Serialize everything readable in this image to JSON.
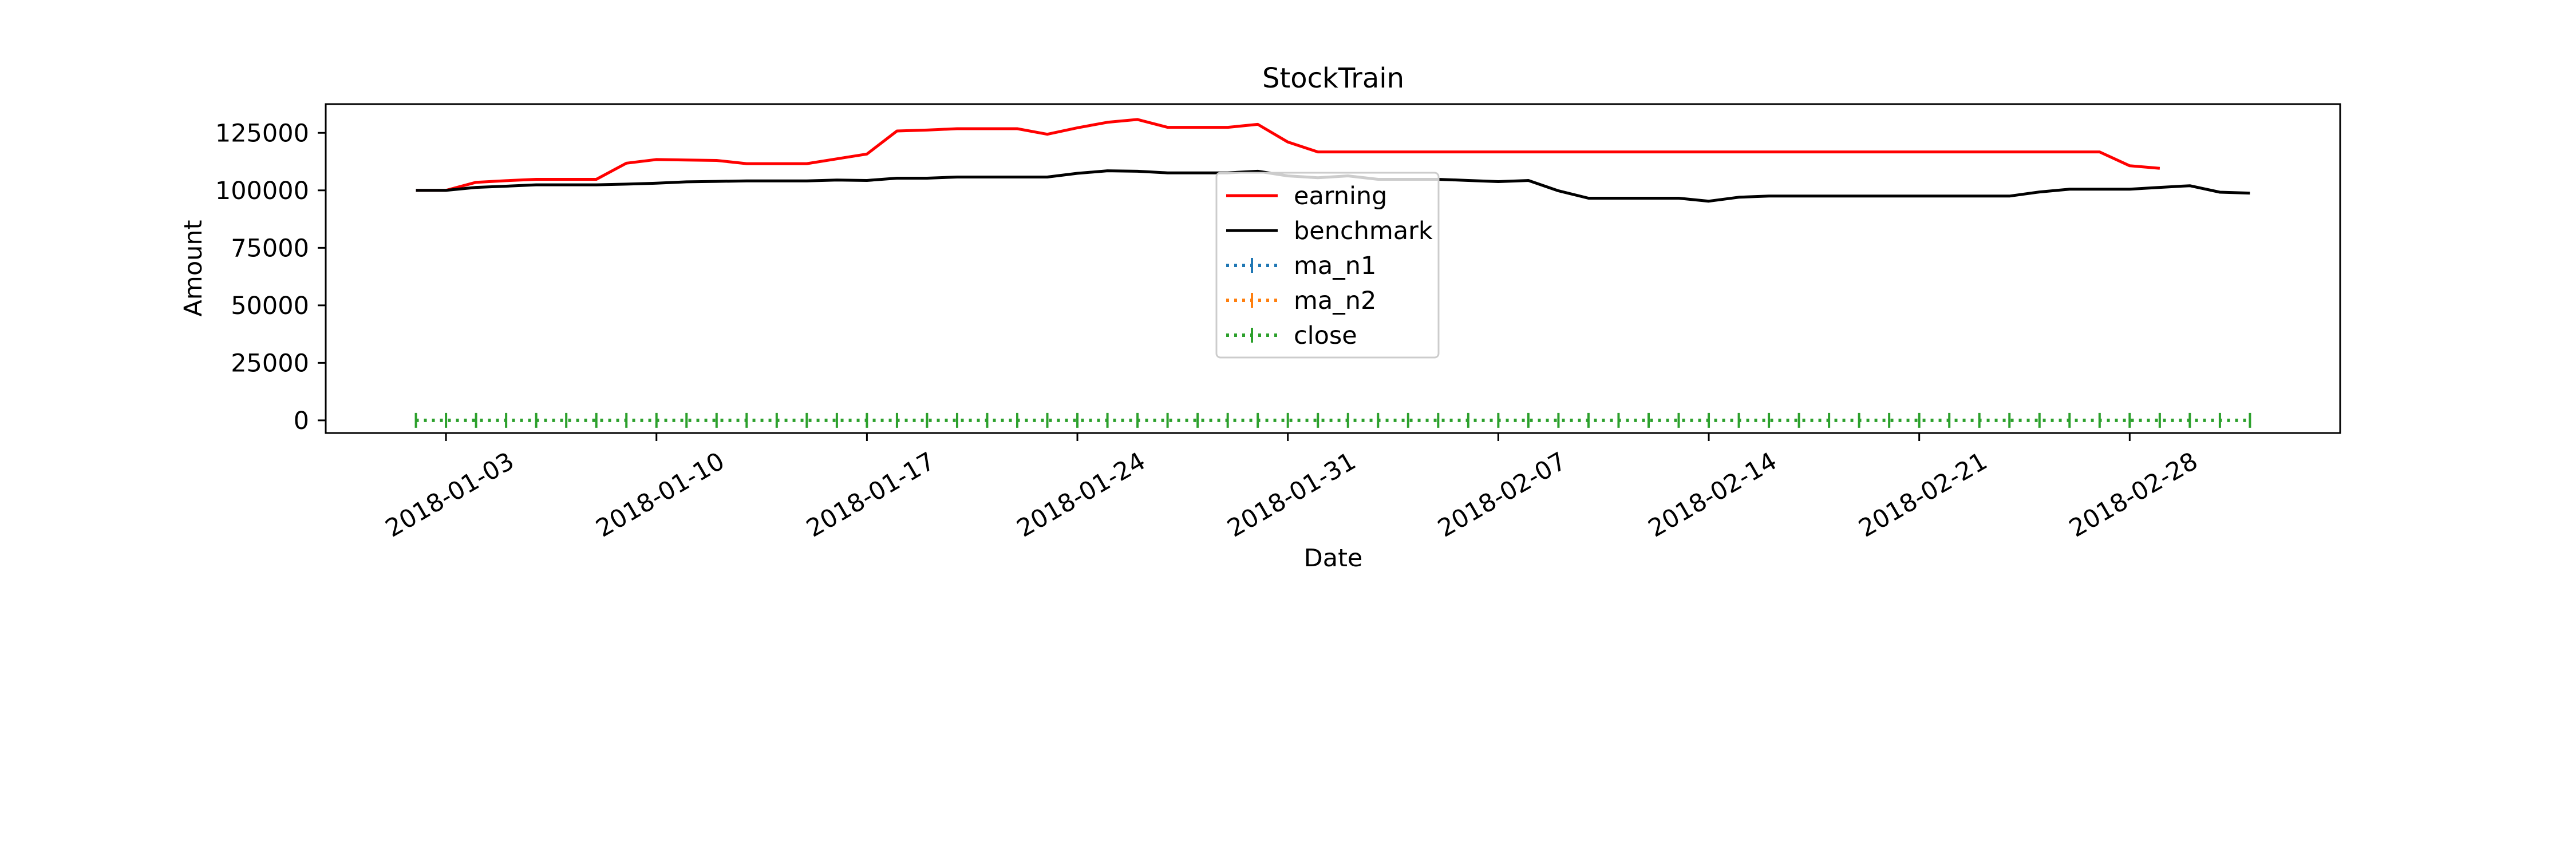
{
  "chart_data": {
    "type": "line",
    "title": "StockTrain",
    "xlabel": "Date",
    "ylabel": "Amount",
    "xlim": [
      "2017-12-30",
      "2018-03-07"
    ],
    "ylim": [
      -5500,
      137500
    ],
    "x_tick_labels": [
      "2018-01-03",
      "2018-01-10",
      "2018-01-17",
      "2018-01-24",
      "2018-01-31",
      "2018-02-07",
      "2018-02-14",
      "2018-02-21",
      "2018-02-28"
    ],
    "y_tick_labels": [
      "0",
      "25000",
      "50000",
      "75000",
      "100000",
      "125000"
    ],
    "y_tick_values": [
      0,
      25000,
      50000,
      75000,
      100000,
      125000
    ],
    "legend_position": "center",
    "grid": false,
    "series": [
      {
        "name": "earning",
        "color": "#ff0000",
        "style": "solid",
        "points": [
          [
            "2018-01-02",
            100000
          ],
          [
            "2018-01-03",
            100000
          ],
          [
            "2018-01-04",
            103500
          ],
          [
            "2018-01-05",
            104200
          ],
          [
            "2018-01-06",
            104800
          ],
          [
            "2018-01-07",
            104800
          ],
          [
            "2018-01-08",
            104800
          ],
          [
            "2018-01-09",
            111800
          ],
          [
            "2018-01-10",
            113400
          ],
          [
            "2018-01-11",
            113200
          ],
          [
            "2018-01-12",
            113000
          ],
          [
            "2018-01-13",
            111600
          ],
          [
            "2018-01-14",
            111600
          ],
          [
            "2018-01-15",
            111600
          ],
          [
            "2018-01-16",
            113700
          ],
          [
            "2018-01-17",
            115800
          ],
          [
            "2018-01-18",
            125800
          ],
          [
            "2018-01-19",
            126200
          ],
          [
            "2018-01-20",
            126800
          ],
          [
            "2018-01-21",
            126800
          ],
          [
            "2018-01-22",
            126800
          ],
          [
            "2018-01-23",
            124400
          ],
          [
            "2018-01-24",
            127200
          ],
          [
            "2018-01-25",
            129600
          ],
          [
            "2018-01-26",
            130800
          ],
          [
            "2018-01-27",
            127400
          ],
          [
            "2018-01-28",
            127400
          ],
          [
            "2018-01-29",
            127400
          ],
          [
            "2018-01-30",
            128700
          ],
          [
            "2018-01-31",
            121000
          ],
          [
            "2018-02-01",
            116700
          ],
          [
            "2018-02-07",
            116700
          ],
          [
            "2018-02-14",
            116700
          ],
          [
            "2018-02-21",
            116700
          ],
          [
            "2018-02-27",
            116700
          ],
          [
            "2018-02-28",
            110700
          ],
          [
            "2018-03-01",
            109600
          ]
        ]
      },
      {
        "name": "benchmark",
        "color": "#000000",
        "style": "solid",
        "points": [
          [
            "2018-01-02",
            100000
          ],
          [
            "2018-01-03",
            100000
          ],
          [
            "2018-01-04",
            101300
          ],
          [
            "2018-01-05",
            101800
          ],
          [
            "2018-01-06",
            102400
          ],
          [
            "2018-01-07",
            102400
          ],
          [
            "2018-01-08",
            102400
          ],
          [
            "2018-01-09",
            102700
          ],
          [
            "2018-01-10",
            103100
          ],
          [
            "2018-01-11",
            103700
          ],
          [
            "2018-01-12",
            103900
          ],
          [
            "2018-01-13",
            104100
          ],
          [
            "2018-01-14",
            104100
          ],
          [
            "2018-01-15",
            104100
          ],
          [
            "2018-01-16",
            104500
          ],
          [
            "2018-01-17",
            104300
          ],
          [
            "2018-01-18",
            105300
          ],
          [
            "2018-01-19",
            105300
          ],
          [
            "2018-01-20",
            105800
          ],
          [
            "2018-01-21",
            105800
          ],
          [
            "2018-01-22",
            105800
          ],
          [
            "2018-01-23",
            105800
          ],
          [
            "2018-01-24",
            107400
          ],
          [
            "2018-01-25",
            108500
          ],
          [
            "2018-01-26",
            108300
          ],
          [
            "2018-01-27",
            107600
          ],
          [
            "2018-01-28",
            107600
          ],
          [
            "2018-01-29",
            107600
          ],
          [
            "2018-01-30",
            108300
          ],
          [
            "2018-01-31",
            106300
          ],
          [
            "2018-02-01",
            105500
          ],
          [
            "2018-02-02",
            106300
          ],
          [
            "2018-02-03",
            104800
          ],
          [
            "2018-02-04",
            104800
          ],
          [
            "2018-02-05",
            104800
          ],
          [
            "2018-02-06",
            104300
          ],
          [
            "2018-02-07",
            103800
          ],
          [
            "2018-02-08",
            104300
          ],
          [
            "2018-02-09",
            99800
          ],
          [
            "2018-02-10",
            96600
          ],
          [
            "2018-02-11",
            96600
          ],
          [
            "2018-02-12",
            96600
          ],
          [
            "2018-02-13",
            96600
          ],
          [
            "2018-02-14",
            95300
          ],
          [
            "2018-02-15",
            97000
          ],
          [
            "2018-02-16",
            97500
          ],
          [
            "2018-02-17",
            97500
          ],
          [
            "2018-02-18",
            97500
          ],
          [
            "2018-02-19",
            97500
          ],
          [
            "2018-02-20",
            97500
          ],
          [
            "2018-02-21",
            97500
          ],
          [
            "2018-02-22",
            97500
          ],
          [
            "2018-02-23",
            97500
          ],
          [
            "2018-02-24",
            97500
          ],
          [
            "2018-02-25",
            99300
          ],
          [
            "2018-02-26",
            100500
          ],
          [
            "2018-02-27",
            100500
          ],
          [
            "2018-02-28",
            100500
          ],
          [
            "2018-03-01",
            101300
          ],
          [
            "2018-03-02",
            102000
          ],
          [
            "2018-03-03",
            99200
          ],
          [
            "2018-03-04",
            98800
          ]
        ]
      },
      {
        "name": "ma_n1",
        "color": "#1f77b4",
        "style": "dotted",
        "marker": "|",
        "points": []
      },
      {
        "name": "ma_n2",
        "color": "#ff7f0e",
        "style": "dotted",
        "marker": "|",
        "points": []
      },
      {
        "name": "close",
        "color": "#2ca02c",
        "style": "dotted",
        "marker": "|",
        "range": [
          "2018-01-02",
          "2018-03-04"
        ],
        "value": 0
      }
    ]
  }
}
